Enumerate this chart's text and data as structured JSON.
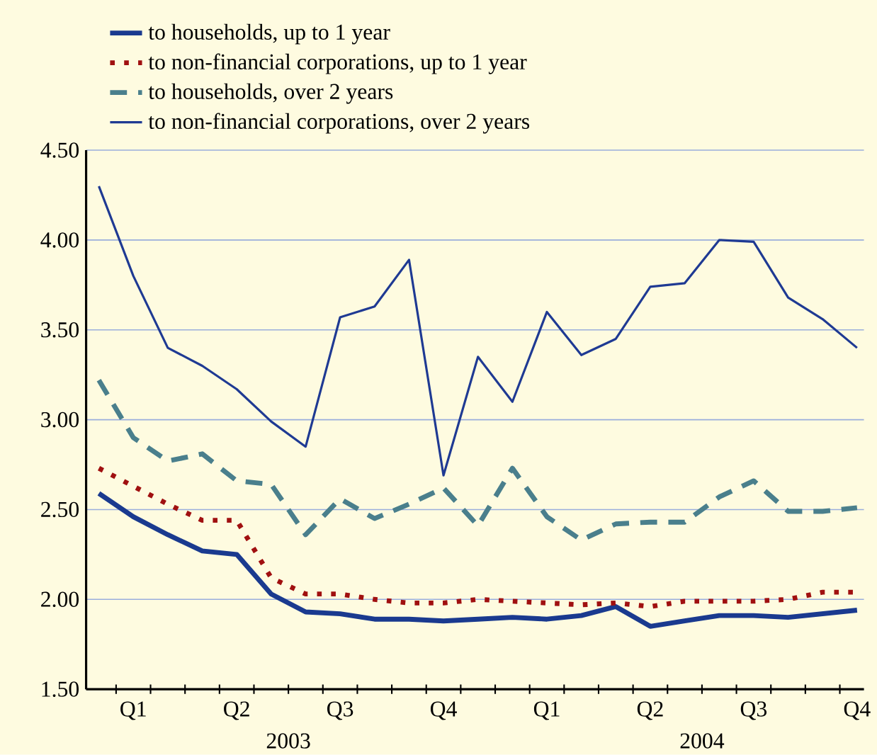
{
  "chart_data": {
    "type": "line",
    "categories": [
      null,
      "Q1",
      null,
      null,
      "Q2",
      null,
      null,
      "Q3",
      null,
      null,
      "Q4",
      null,
      null,
      "Q1",
      null,
      null,
      "Q2",
      null,
      null,
      "Q3",
      null,
      null,
      "Q4"
    ],
    "series": [
      {
        "name": "to households, up to 1 year",
        "color": "#1a3a8f",
        "line_style": "solid",
        "values": [
          2.59,
          2.46,
          2.36,
          2.27,
          2.25,
          2.03,
          1.93,
          1.92,
          1.89,
          1.89,
          1.88,
          1.89,
          1.9,
          1.89,
          1.91,
          1.96,
          1.85,
          1.88,
          1.91,
          1.91,
          1.9,
          1.92,
          1.94
        ]
      },
      {
        "name": "to non-financial corporations, up to 1 year",
        "color": "#a01010",
        "line_style": "dotted",
        "values": [
          2.73,
          2.63,
          2.53,
          2.44,
          2.44,
          2.12,
          2.03,
          2.03,
          2.0,
          1.98,
          1.98,
          2.0,
          1.99,
          1.98,
          1.97,
          1.98,
          1.96,
          1.99,
          1.99,
          1.99,
          2.0,
          2.04,
          2.04
        ]
      },
      {
        "name": "to households, over 2 years",
        "color": "#4a7f8c",
        "line_style": "dashed",
        "values": [
          3.22,
          2.9,
          2.77,
          2.81,
          2.66,
          2.64,
          2.36,
          2.56,
          2.45,
          2.53,
          2.62,
          2.41,
          2.73,
          2.46,
          2.33,
          2.42,
          2.43,
          2.43,
          2.57,
          2.66,
          2.49,
          2.49,
          2.51
        ]
      },
      {
        "name": "to non-financial corporations, over 2 years",
        "color": "#1f3a93",
        "line_style": "solid",
        "values": [
          4.3,
          3.8,
          3.4,
          3.3,
          3.17,
          2.99,
          2.85,
          3.57,
          3.63,
          3.89,
          2.69,
          3.35,
          3.1,
          3.6,
          3.36,
          3.45,
          3.74,
          3.76,
          4.0,
          3.99,
          3.68,
          3.56,
          3.4
        ]
      }
    ],
    "ylim": [
      1.5,
      4.5
    ],
    "yticks": [
      {
        "value": 1.5,
        "label": "1.50"
      },
      {
        "value": 2.0,
        "label": "2.00"
      },
      {
        "value": 2.5,
        "label": "2.50"
      },
      {
        "value": 3.0,
        "label": "3.00"
      },
      {
        "value": 3.5,
        "label": "3.50"
      },
      {
        "value": 4.0,
        "label": "4.00"
      },
      {
        "value": 4.5,
        "label": "4.50"
      }
    ],
    "grid": "y",
    "legend": "top left",
    "annotations": [
      "2003",
      "2004"
    ]
  }
}
